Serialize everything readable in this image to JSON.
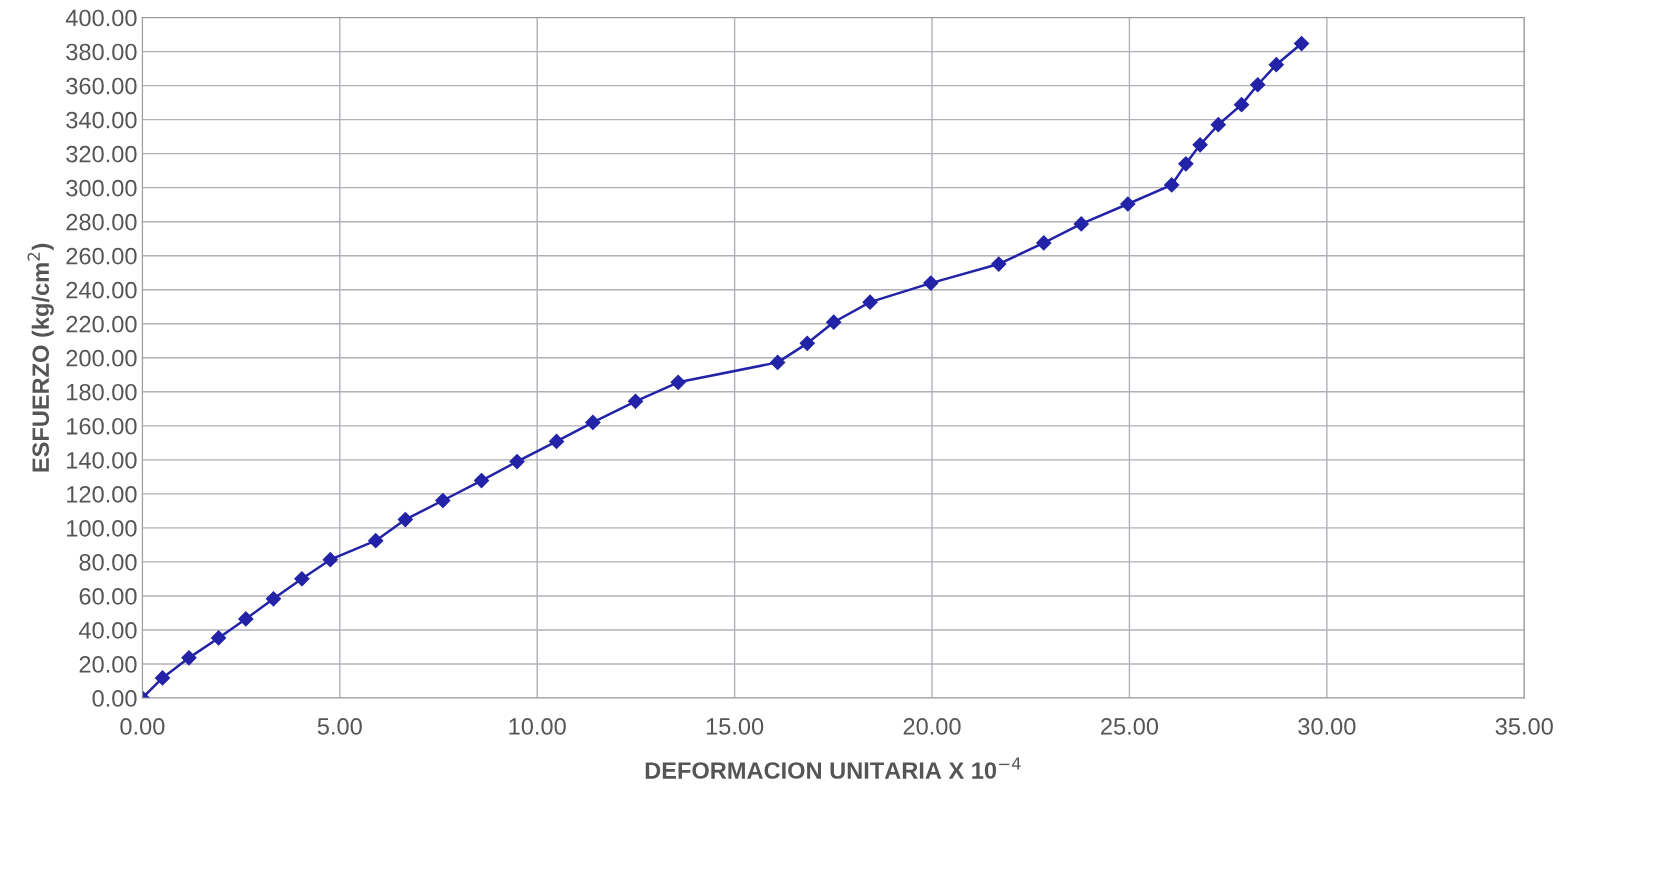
{
  "chart_data": {
    "type": "line",
    "xlabel": "DEFORMACION UNITARIA X 10$^{−4}$",
    "ylabel": "ESFUERZO (kg/cm$^{2}$)",
    "x": [
      0,
      0.51,
      1.18,
      1.93,
      2.62,
      3.32,
      4.04,
      4.76,
      5.91,
      6.66,
      7.61,
      8.59,
      9.49,
      10.49,
      11.41,
      12.49,
      13.57,
      16.09,
      16.84,
      17.51,
      18.43,
      19.97,
      21.69,
      22.83,
      23.78,
      24.96,
      26.07,
      26.43,
      26.79,
      27.25,
      27.84,
      28.25,
      28.72,
      29.36
    ],
    "series": [
      {
        "color": "#2323a8",
        "values": [
          0,
          11.8,
          23.6,
          35.3,
          46.5,
          58.3,
          70.1,
          81.3,
          92.5,
          104.9,
          116.1,
          127.8,
          139.0,
          150.8,
          162.0,
          174.4,
          185.6,
          197.3,
          208.5,
          220.9,
          232.7,
          243.9,
          255.1,
          267.5,
          278.7,
          290.4,
          301.6,
          314.0,
          325.2,
          337.0,
          348.8,
          360.5,
          372.3,
          384.7
        ]
      }
    ],
    "xlim": [
      0,
      35
    ],
    "xticks": [
      {
        "value": 0,
        "label": "0.00"
      },
      {
        "value": 5,
        "label": "5.00"
      },
      {
        "value": 10,
        "label": "10.00"
      },
      {
        "value": 15,
        "label": "15.00"
      },
      {
        "value": 20,
        "label": "20.00"
      },
      {
        "value": 25,
        "label": "25.00"
      },
      {
        "value": 30,
        "label": "30.00"
      },
      {
        "value": 35,
        "label": "35.00"
      }
    ],
    "ylim": [
      0,
      400
    ],
    "yticks": [
      {
        "value": 0,
        "label": "0.00"
      },
      {
        "value": 20,
        "label": "20.00"
      },
      {
        "value": 40,
        "label": "40.00"
      },
      {
        "value": 60,
        "label": "60.00"
      },
      {
        "value": 80,
        "label": "80.00"
      },
      {
        "value": 100,
        "label": "100.00"
      },
      {
        "value": 120,
        "label": "120.00"
      },
      {
        "value": 140,
        "label": "140.00"
      },
      {
        "value": 160,
        "label": "160.00"
      },
      {
        "value": 180,
        "label": "180.00"
      },
      {
        "value": 200,
        "label": "200.00"
      },
      {
        "value": 220,
        "label": "220.00"
      },
      {
        "value": 240,
        "label": "240.00"
      },
      {
        "value": 260,
        "label": "260.00"
      },
      {
        "value": 280,
        "label": "280.00"
      },
      {
        "value": 300,
        "label": "300.00"
      },
      {
        "value": 320,
        "label": "320.00"
      },
      {
        "value": 340,
        "label": "340.00"
      },
      {
        "value": 360,
        "label": "360.00"
      },
      {
        "value": 380,
        "label": "380.00"
      },
      {
        "value": 400,
        "label": "400.00"
      }
    ],
    "grid": true,
    "marker": "diamond",
    "line_style": "solid"
  }
}
